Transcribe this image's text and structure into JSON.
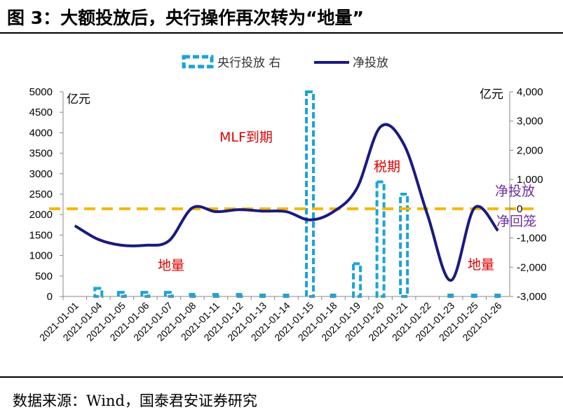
{
  "figure": {
    "title": "图 3：大额投放后，央行操作再次转为“地量”",
    "source": "数据来源：Wind，国泰君安证券研究"
  },
  "chart_data": {
    "type": "bar+line",
    "categories": [
      "2021-01-01",
      "2021-01-04",
      "2021-01-05",
      "2021-01-06",
      "2021-01-07",
      "2021-01-08",
      "2021-01-11",
      "2021-01-12",
      "2021-01-13",
      "2021-01-14",
      "2021-01-15",
      "2021-01-18",
      "2021-01-19",
      "2021-01-20",
      "2021-01-21",
      "2021-01-22",
      "2021-01-23",
      "2021-01-25",
      "2021-01-26"
    ],
    "series": [
      {
        "name": "央行投放 右",
        "type": "bar",
        "axis": "left",
        "color": "#1ba3d9",
        "values": [
          0,
          200,
          100,
          100,
          100,
          50,
          50,
          50,
          30,
          30,
          5000,
          30,
          800,
          2800,
          2500,
          0,
          30,
          30,
          30
        ]
      },
      {
        "name": "净投放",
        "type": "line",
        "axis": "right",
        "color": "#1a1a80",
        "values": [
          -580,
          -1050,
          -1250,
          -1250,
          -1100,
          30,
          -100,
          -30,
          -80,
          -100,
          -380,
          -100,
          700,
          2800,
          2200,
          -200,
          -2450,
          30,
          -750
        ]
      }
    ],
    "y_left": {
      "label": "亿元",
      "min": 0,
      "max": 5000,
      "ticks": [
        "0",
        "500",
        "1000",
        "1500",
        "2000",
        "2500",
        "3000",
        "3500",
        "4000",
        "4500",
        "5000"
      ]
    },
    "y_right": {
      "label": "亿元",
      "min": -3000,
      "max": 4000,
      "ticks": [
        "-3,000",
        "-2,000",
        "-1,000",
        "0",
        "1,000",
        "2,000",
        "3,000",
        "4,000"
      ]
    },
    "reference_line": {
      "axis": "right",
      "value": 0,
      "color": "#f5b800"
    },
    "legend_position": "top-center",
    "annotations": [
      {
        "text": "MLF到期",
        "color": "#e00000"
      },
      {
        "text": "税期",
        "color": "#e00000"
      },
      {
        "text": "地量",
        "color": "#e00000"
      },
      {
        "text": "地量",
        "color": "#e00000"
      },
      {
        "text": "净投放",
        "color": "#7030a0"
      },
      {
        "text": "净回笼",
        "color": "#7030a0"
      }
    ]
  }
}
